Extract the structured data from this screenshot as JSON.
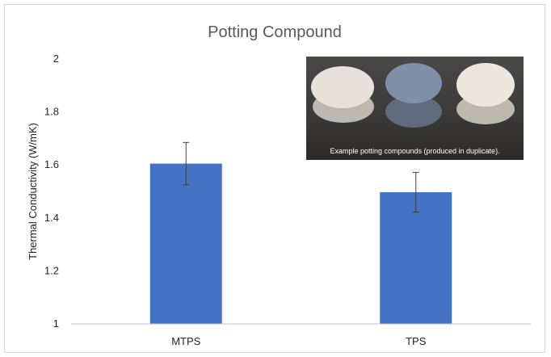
{
  "chart_data": {
    "type": "bar",
    "title": "Potting Compound",
    "xlabel": "",
    "ylabel": "Thermal Conductivity (W/mK)",
    "categories": [
      "MTPS",
      "TPS"
    ],
    "values": [
      1.605,
      1.497
    ],
    "error": [
      0.08,
      0.075
    ],
    "ylim": [
      1,
      2
    ],
    "yticks": [
      "1",
      "1.2",
      "1.4",
      "1.6",
      "1.8",
      "2"
    ],
    "grid": false,
    "legend": "none",
    "bar_color": "#4472c4"
  },
  "inset_photo": {
    "caption": "Example potting compounds (produced in duplicate).",
    "pucks": [
      "white",
      "blue-gray",
      "white"
    ]
  }
}
